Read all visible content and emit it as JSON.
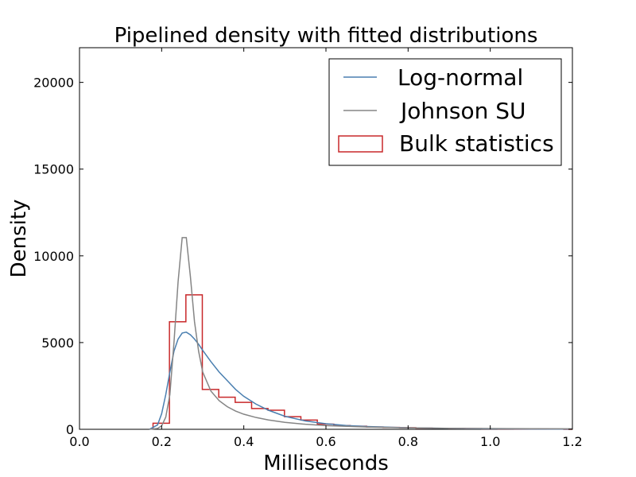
{
  "chart_data": {
    "type": "line",
    "title": "Pipelined density with fitted distributions",
    "xlabel": "Milliseconds",
    "ylabel": "Density",
    "xlim": [
      0.0,
      1.2
    ],
    "ylim": [
      0,
      22000
    ],
    "xticks": [
      "0.0",
      "0.2",
      "0.4",
      "0.6",
      "0.8",
      "1.0",
      "1.2"
    ],
    "yticks": [
      "0",
      "5000",
      "10000",
      "15000",
      "20000"
    ],
    "grid": false,
    "legend_position": "top-right",
    "series": [
      {
        "name": "Log-normal",
        "kind": "line",
        "color": "#4a7fb0",
        "x": [
          0.17,
          0.19,
          0.2,
          0.21,
          0.22,
          0.23,
          0.24,
          0.25,
          0.26,
          0.27,
          0.28,
          0.29,
          0.3,
          0.32,
          0.34,
          0.36,
          0.38,
          0.4,
          0.43,
          0.46,
          0.5,
          0.55,
          0.6,
          0.65,
          0.7,
          0.8,
          0.9,
          1.0,
          1.1,
          1.2
        ],
        "y": [
          0,
          250,
          900,
          2000,
          3300,
          4500,
          5200,
          5550,
          5600,
          5450,
          5200,
          4900,
          4550,
          3900,
          3300,
          2800,
          2300,
          1900,
          1450,
          1100,
          750,
          480,
          320,
          220,
          160,
          85,
          50,
          30,
          20,
          12
        ]
      },
      {
        "name": "Johnson SU",
        "kind": "line",
        "color": "#858585",
        "x": [
          0.17,
          0.19,
          0.2,
          0.21,
          0.22,
          0.23,
          0.24,
          0.25,
          0.26,
          0.27,
          0.28,
          0.29,
          0.3,
          0.32,
          0.34,
          0.36,
          0.38,
          0.4,
          0.43,
          0.46,
          0.5,
          0.55,
          0.6,
          0.7,
          0.8,
          0.9,
          1.0,
          1.1,
          1.2
        ],
        "y": [
          0,
          50,
          200,
          700,
          2000,
          5000,
          8500,
          11050,
          11050,
          8800,
          6200,
          4500,
          3300,
          2200,
          1650,
          1300,
          1050,
          870,
          680,
          540,
          400,
          290,
          210,
          130,
          85,
          60,
          45,
          35,
          28
        ]
      },
      {
        "name": "Bulk statistics",
        "kind": "step-histogram",
        "color": "#c8282a",
        "bin_edges": [
          0.179,
          0.219,
          0.259,
          0.299,
          0.339,
          0.379,
          0.419,
          0.459,
          0.499,
          0.539,
          0.579,
          0.619,
          0.659,
          0.699,
          0.739,
          0.779,
          0.819,
          0.859,
          0.899,
          0.939,
          0.979,
          1.019,
          1.059,
          1.099,
          1.139,
          1.179,
          1.2
        ],
        "values": [
          350,
          6200,
          7750,
          2300,
          1850,
          1550,
          1200,
          1100,
          730,
          530,
          300,
          220,
          180,
          130,
          110,
          90,
          70,
          60,
          50,
          40,
          30,
          25,
          20,
          15,
          10,
          0
        ]
      }
    ]
  }
}
